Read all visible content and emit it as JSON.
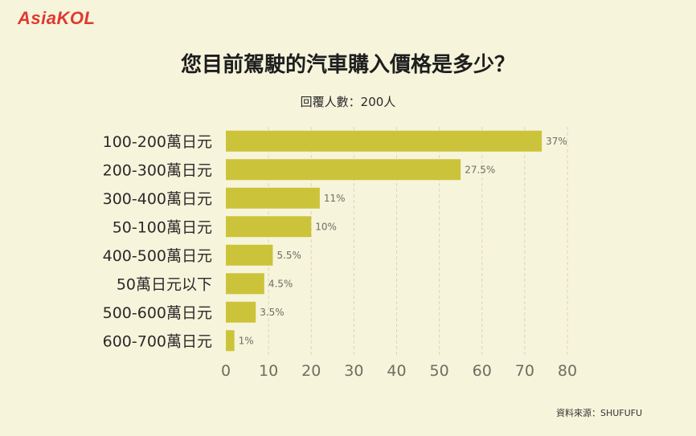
{
  "brand": {
    "logo_text": "AsiaKOL"
  },
  "colors": {
    "background": "#f7f4dc",
    "bar": "#cbc43a",
    "grid": "#d9d6bd",
    "axis_text": "#6e6e5e",
    "label_text": "#6e6e5e"
  },
  "chart_data": {
    "type": "bar",
    "orientation": "horizontal",
    "title": "您目前駕駛的汽車購入價格是多少？",
    "subtitle": "回覆人數：200人",
    "categories": [
      "100-200萬日元",
      "200-300萬日元",
      "300-400萬日元",
      "50-100萬日元",
      "400-500萬日元",
      "50萬日元以下",
      "500-600萬日元",
      "600-700萬日元"
    ],
    "values": [
      37,
      27.5,
      11,
      10,
      5.5,
      4.5,
      3.5,
      1
    ],
    "value_labels": [
      "37%",
      "27.5%",
      "11%",
      "10%",
      "5.5%",
      "4.5%",
      "3.5%",
      "1%"
    ],
    "plotted_scale": 2,
    "xlim": [
      0,
      80
    ],
    "xticks": [
      0,
      10,
      20,
      30,
      40,
      50,
      60,
      70,
      80
    ],
    "grid": "vertical-dashed",
    "legend": "none"
  },
  "source": "資料來源：SHUFUFU"
}
